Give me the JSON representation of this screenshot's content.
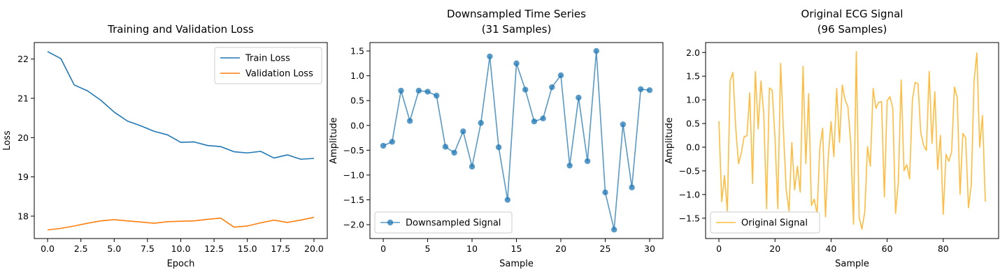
{
  "chart_data": [
    {
      "type": "line",
      "title": "Training and Validation Loss",
      "xlabel": "Epoch",
      "ylabel": "Loss",
      "xlim": [
        -1.0,
        21.0
      ],
      "ylim": [
        17.43,
        22.42
      ],
      "xticks": [
        0.0,
        2.5,
        5.0,
        7.5,
        10.0,
        12.5,
        15.0,
        17.5,
        20.0
      ],
      "xtick_labels": [
        "0.0",
        "2.5",
        "5.0",
        "7.5",
        "10.0",
        "12.5",
        "15.0",
        "17.5",
        "20.0"
      ],
      "yticks": [
        18,
        19,
        20,
        21,
        22
      ],
      "ytick_labels": [
        "18",
        "19",
        "20",
        "21",
        "22"
      ],
      "legend_position": "top-right",
      "series": [
        {
          "name": "Train Loss",
          "color": "#1f77b4",
          "x": [
            0,
            1,
            2,
            3,
            4,
            5,
            6,
            7,
            8,
            9,
            10,
            11,
            12,
            13,
            14,
            15,
            16,
            17,
            18,
            19,
            20
          ],
          "values": [
            22.19,
            22.01,
            21.34,
            21.19,
            20.95,
            20.65,
            20.42,
            20.3,
            20.16,
            20.07,
            19.88,
            19.89,
            19.8,
            19.77,
            19.64,
            19.61,
            19.65,
            19.48,
            19.56,
            19.45,
            19.47
          ]
        },
        {
          "name": "Validation Loss",
          "color": "#ff7f0e",
          "x": [
            0,
            1,
            2,
            3,
            4,
            5,
            6,
            7,
            8,
            9,
            10,
            11,
            12,
            13,
            14,
            15,
            16,
            17,
            18,
            19,
            20
          ],
          "values": [
            17.65,
            17.69,
            17.75,
            17.82,
            17.88,
            17.91,
            17.88,
            17.85,
            17.82,
            17.86,
            17.87,
            17.88,
            17.92,
            17.95,
            17.72,
            17.75,
            17.83,
            17.9,
            17.84,
            17.9,
            17.97
          ]
        }
      ]
    },
    {
      "type": "line",
      "title": "Downsampled Time Series",
      "subtitle": "(31 Samples)",
      "xlabel": "Sample",
      "ylabel": "Amplitude",
      "xlim": [
        -1.5,
        31.5
      ],
      "ylim": [
        -2.28,
        1.67
      ],
      "xticks": [
        0,
        5,
        10,
        15,
        20,
        25,
        30
      ],
      "xtick_labels": [
        "0",
        "5",
        "10",
        "15",
        "20",
        "25",
        "30"
      ],
      "yticks": [
        -2.0,
        -1.5,
        -1.0,
        -0.5,
        0.0,
        0.5,
        1.0,
        1.5
      ],
      "ytick_labels": [
        "−2.0",
        "−1.5",
        "−1.0",
        "−0.5",
        "0.0",
        "0.5",
        "1.0",
        "1.5"
      ],
      "legend_position": "bottom-left",
      "markers": true,
      "series": [
        {
          "name": "Downsampled Signal",
          "color": "#1f77b4",
          "x": [
            0,
            1,
            2,
            3,
            4,
            5,
            6,
            7,
            8,
            9,
            10,
            11,
            12,
            13,
            14,
            15,
            16,
            17,
            18,
            19,
            20,
            21,
            22,
            23,
            24,
            25,
            26,
            27,
            28,
            29,
            30
          ],
          "values": [
            -0.41,
            -0.33,
            0.7,
            0.09,
            0.7,
            0.68,
            0.6,
            -0.43,
            -0.55,
            -0.12,
            -0.83,
            0.05,
            1.39,
            -0.44,
            -1.5,
            1.25,
            0.72,
            0.08,
            0.14,
            0.77,
            1.01,
            -0.81,
            0.56,
            -0.72,
            1.5,
            -1.35,
            -2.1,
            0.02,
            -1.25,
            0.73,
            0.71
          ]
        }
      ]
    },
    {
      "type": "line",
      "title": "Original ECG Signal",
      "subtitle": "(96 Samples)",
      "xlabel": "Sample",
      "ylabel": "Amplitude",
      "xlim": [
        -4.75,
        99.75
      ],
      "ylim": [
        -1.93,
        2.21
      ],
      "xticks": [
        0,
        20,
        40,
        60,
        80
      ],
      "xtick_labels": [
        "0",
        "20",
        "40",
        "60",
        "80"
      ],
      "yticks": [
        -1.5,
        -1.0,
        -0.5,
        0.0,
        0.5,
        1.0,
        1.5,
        2.0
      ],
      "ytick_labels": [
        "−1.5",
        "−1.0",
        "−0.5",
        "0.0",
        "0.5",
        "1.0",
        "1.5",
        "2.0"
      ],
      "legend_position": "bottom-left",
      "series": [
        {
          "name": "Original Signal",
          "color": "#ffa500",
          "x": [
            0,
            1,
            2,
            3,
            4,
            5,
            6,
            7,
            8,
            9,
            10,
            11,
            12,
            13,
            14,
            15,
            16,
            17,
            18,
            19,
            20,
            21,
            22,
            23,
            24,
            25,
            26,
            27,
            28,
            29,
            30,
            31,
            32,
            33,
            34,
            35,
            36,
            37,
            38,
            39,
            40,
            41,
            42,
            43,
            44,
            45,
            46,
            47,
            48,
            49,
            50,
            51,
            52,
            53,
            54,
            55,
            56,
            57,
            58,
            59,
            60,
            61,
            62,
            63,
            64,
            65,
            66,
            67,
            68,
            69,
            70,
            71,
            72,
            73,
            74,
            75,
            76,
            77,
            78,
            79,
            80,
            81,
            82,
            83,
            84,
            85,
            86,
            87,
            88,
            89,
            90,
            91,
            92,
            93,
            94,
            95
          ],
          "values": [
            0.55,
            -1.15,
            -0.6,
            -1.35,
            1.4,
            1.58,
            0.4,
            -0.35,
            -0.12,
            0.22,
            0.24,
            1.15,
            -0.77,
            1.6,
            0.39,
            1.4,
            0.7,
            -1.3,
            1.25,
            1.2,
            0.2,
            -1.3,
            1.77,
            0.35,
            -0.9,
            -1.35,
            0.1,
            -0.9,
            -0.4,
            -0.95,
            1.71,
            -0.35,
            1.13,
            -1.23,
            -1.1,
            -1.4,
            0.0,
            0.4,
            -1.47,
            -0.2,
            0.54,
            -0.2,
            1.24,
            0.1,
            1.31,
            1.0,
            0.85,
            0.1,
            -1.63,
            2.02,
            -1.48,
            -1.73,
            -1.38,
            0.01,
            -0.4,
            1.24,
            0.82,
            0.95,
            0.96,
            -1.05,
            0.98,
            1.07,
            0.83,
            -1.4,
            -0.73,
            1.42,
            -0.5,
            -0.37,
            -0.67,
            1.0,
            1.37,
            1.34,
            0.3,
            0.04,
            -0.07,
            1.6,
            0.08,
            1.17,
            -0.47,
            0.25,
            -1.42,
            -0.15,
            -0.3,
            -0.1,
            1.27,
            1.05,
            -1.0,
            0.29,
            0.2,
            -1.28,
            -0.8,
            1.4,
            1.99,
            0.0,
            0.67,
            -1.15
          ]
        }
      ]
    }
  ]
}
